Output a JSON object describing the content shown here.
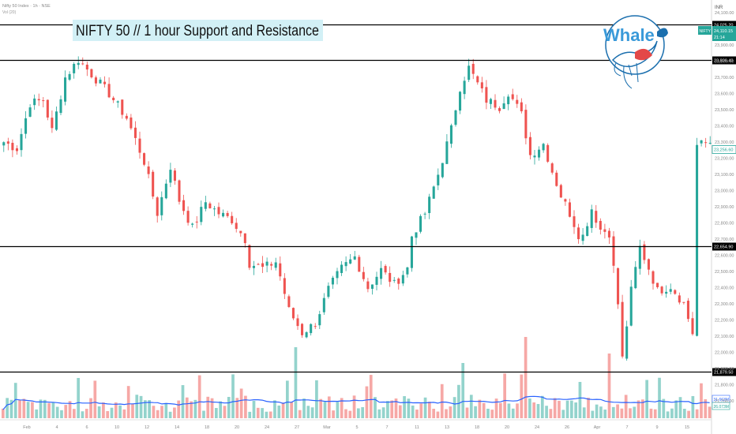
{
  "header": {
    "symbol_line": "Nifty 50 Index · 1h · NSE",
    "volume_line": "Vol (20)"
  },
  "title_banner": "NIFTY 50 // 1 hour Support and Resistance",
  "logo": {
    "word": "Whale"
  },
  "currency": "INR",
  "colors": {
    "up": "#26a69a",
    "down": "#ef5350",
    "vol_up": "#93d3cc",
    "vol_down": "#f6a8a6",
    "vol_ma": "#2962ff",
    "level_line": "#000000",
    "banner_bg": "#d2f0f6"
  },
  "price_tag": {
    "symbol": "NIFTY",
    "price": "24,110.15",
    "countdown": "21:14"
  },
  "chart_data": {
    "type": "candlestick",
    "title": "NIFTY 50 // 1 hour Support and Resistance",
    "timeframe": "1h",
    "y_range": [
      21700,
      24130
    ],
    "y_ticks": [
      21700,
      21800,
      21900,
      22000,
      22100,
      22200,
      22300,
      22400,
      22500,
      22600,
      22700,
      22800,
      22900,
      23000,
      23100,
      23200,
      23300,
      23400,
      23500,
      23600,
      23700,
      23800,
      23900,
      24000,
      24100
    ],
    "levels": [
      {
        "value": 24025.2,
        "label": "24,025.20"
      },
      {
        "value": 23806.4,
        "label": "23,806.40"
      },
      {
        "value": 22654.9,
        "label": "22,654.90"
      },
      {
        "value": 21879.5,
        "label": "21,879.50"
      }
    ],
    "marker": {
      "value": 23256.6,
      "label": "23,256.60"
    },
    "x_ticks": [
      "Feb",
      "4",
      "6",
      "10",
      "12",
      "14",
      "18",
      "20",
      "24",
      "27",
      "Mar",
      "5",
      "7",
      "11",
      "13",
      "18",
      "20",
      "24",
      "26",
      "Apr",
      "7",
      "9",
      "15"
    ],
    "volume": {
      "ma_period": 20,
      "ma_label": "31.663M",
      "vol_label": "26.073M"
    },
    "grid": false,
    "price_path": [
      [
        0,
        23300
      ],
      [
        3,
        23260
      ],
      [
        6,
        23540
      ],
      [
        9,
        23560
      ],
      [
        11,
        23370
      ],
      [
        14,
        23700
      ],
      [
        17,
        23810
      ],
      [
        20,
        23720
      ],
      [
        24,
        23600
      ],
      [
        28,
        23450
      ],
      [
        32,
        23180
      ],
      [
        35,
        22860
      ],
      [
        38,
        23150
      ],
      [
        40,
        22940
      ],
      [
        43,
        22770
      ],
      [
        46,
        22930
      ],
      [
        49,
        22860
      ],
      [
        52,
        22820
      ],
      [
        55,
        22700
      ],
      [
        56,
        22550
      ],
      [
        59,
        22520
      ],
      [
        62,
        22560
      ],
      [
        63,
        22470
      ],
      [
        65,
        22260
      ],
      [
        68,
        22120
      ],
      [
        71,
        22180
      ],
      [
        74,
        22390
      ],
      [
        77,
        22520
      ],
      [
        80,
        22590
      ],
      [
        83,
        22400
      ],
      [
        86,
        22510
      ],
      [
        89,
        22420
      ],
      [
        92,
        22520
      ],
      [
        93,
        22720
      ],
      [
        96,
        22860
      ],
      [
        99,
        23100
      ],
      [
        102,
        23380
      ],
      [
        104,
        23640
      ],
      [
        106,
        23760
      ],
      [
        108,
        23660
      ],
      [
        110,
        23560
      ],
      [
        113,
        23520
      ],
      [
        115,
        23610
      ],
      [
        118,
        23470
      ],
      [
        120,
        23220
      ],
      [
        123,
        23290
      ],
      [
        125,
        23120
      ],
      [
        127,
        22970
      ],
      [
        129,
        22860
      ],
      [
        131,
        22730
      ],
      [
        132,
        22720
      ],
      [
        134,
        22890
      ],
      [
        136,
        22760
      ],
      [
        138,
        22740
      ],
      [
        140,
        22300
      ],
      [
        141,
        21960
      ],
      [
        143,
        22380
      ],
      [
        145,
        22650
      ],
      [
        147,
        22520
      ],
      [
        149,
        22380
      ],
      [
        152,
        22410
      ],
      [
        155,
        22300
      ],
      [
        157,
        22120
      ],
      [
        158,
        23280
      ],
      [
        161,
        23300
      ]
    ]
  }
}
